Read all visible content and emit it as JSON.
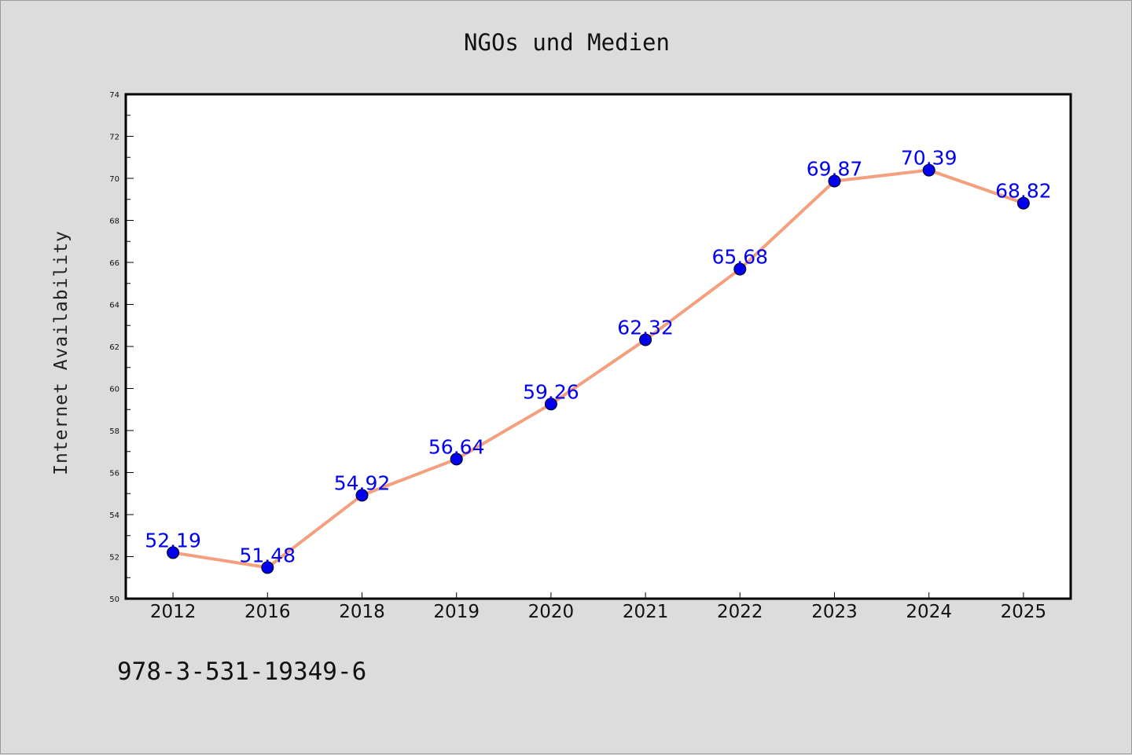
{
  "chart_data": {
    "type": "line",
    "title": "NGOs und Medien",
    "xlabel": "",
    "ylabel": "Internet Availability",
    "categories": [
      "2012",
      "2016",
      "2018",
      "2019",
      "2020",
      "2021",
      "2022",
      "2023",
      "2024",
      "2025"
    ],
    "series": [
      {
        "values": [
          52.19,
          51.48,
          54.92,
          56.64,
          59.26,
          62.32,
          65.68,
          69.87,
          70.39,
          68.82
        ],
        "data_labels": [
          "52.19",
          "51.48",
          "54.92",
          "56.64",
          "59.26",
          "62.32",
          "65.68",
          "69.87",
          "70.39",
          "68.82"
        ]
      }
    ],
    "ylim": [
      50,
      74
    ],
    "yticks": [
      "50",
      "52",
      "54",
      "56",
      "58",
      "60",
      "62",
      "64",
      "66",
      "68",
      "70",
      "72",
      "74"
    ],
    "grid": false,
    "legend": "none",
    "line_color": "#f4a07e",
    "marker_color": "#0000ee",
    "label_color": "#0000ee",
    "plot_background": "#ffffff",
    "figure_background": "#dcdcdc"
  },
  "footnote": "978-3-531-19349-6"
}
